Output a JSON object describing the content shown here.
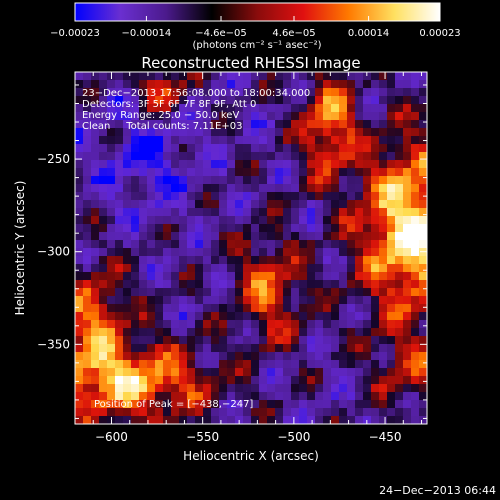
{
  "chart_data": {
    "type": "heatmap",
    "title": "Reconstructed RHESSI Image",
    "xlabel": "Heliocentric X (arcsec)",
    "ylabel": "Heliocentric Y (arcsec)",
    "xlim": [
      -620,
      -427
    ],
    "ylim": [
      -393,
      -203
    ],
    "x_ticks": [
      {
        "value": -600,
        "label": "−600"
      },
      {
        "value": -550,
        "label": "−550"
      },
      {
        "value": -500,
        "label": "−500"
      },
      {
        "value": -450,
        "label": "−450"
      }
    ],
    "y_ticks": [
      {
        "value": -250,
        "label": "−250"
      },
      {
        "value": -300,
        "label": "−300"
      },
      {
        "value": -350,
        "label": "−350"
      }
    ],
    "colorbar": {
      "vmin": -0.00023,
      "vmax": 0.00023,
      "units": "(photons cm⁻² s⁻¹ asec⁻²)",
      "ticks": [
        {
          "value": -0.00023,
          "label": "−0.00023"
        },
        {
          "value": -0.00014,
          "label": "−0.00014"
        },
        {
          "value": -4.6e-05,
          "label": "−4.6e−05"
        },
        {
          "value": 4.6e-05,
          "label": "4.6e−05"
        },
        {
          "value": 0.00014,
          "label": "0.00014"
        },
        {
          "value": 0.00023,
          "label": "0.00023"
        }
      ],
      "colors": [
        "#0000ff",
        "#6a2fd0",
        "#4b1a8c",
        "#000000",
        "#8a0c0c",
        "#e01010",
        "#ff7a00",
        "#ffe060",
        "#ffffff"
      ]
    },
    "annotations": [
      "23−Dec−2013 17:56:08.000 to 18:00:34.000",
      "Detectors: 3F 5F 6F 7F 8F 9F, Att 0",
      "Energy Range: 25.0 − 50.0 keV",
      "Clean     Total counts: 7.11E+03"
    ],
    "peak_label": "Position of Peak = [−438,−247]",
    "peak": [
      -438,
      -247
    ]
  },
  "footer": {
    "timestamp": "24−Dec−2013 06:44"
  }
}
